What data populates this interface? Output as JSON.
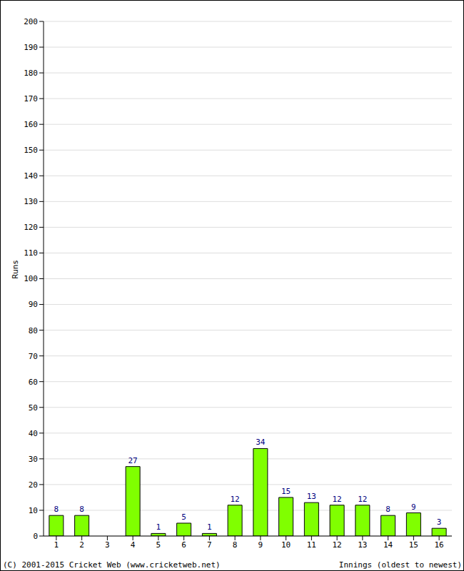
{
  "chart_data": {
    "type": "bar",
    "categories": [
      "1",
      "2",
      "3",
      "4",
      "5",
      "6",
      "7",
      "8",
      "9",
      "10",
      "11",
      "12",
      "13",
      "14",
      "15",
      "16"
    ],
    "values": [
      8,
      8,
      0,
      27,
      1,
      5,
      1,
      12,
      34,
      15,
      13,
      12,
      12,
      8,
      9,
      3
    ],
    "color": "#80ff00",
    "x_label": "Innings (oldest to newest)",
    "y_label": "Runs",
    "ylim": [
      0,
      200
    ],
    "yticks": [
      0,
      10,
      20,
      30,
      40,
      50,
      60,
      70,
      80,
      90,
      100,
      110,
      120,
      130,
      140,
      150,
      160,
      170,
      180,
      190,
      200
    ],
    "grid": true,
    "data_labels": true,
    "annotations": [
      "(C) 2001-2015 Cricket Web (www.cricketweb.net)"
    ]
  }
}
